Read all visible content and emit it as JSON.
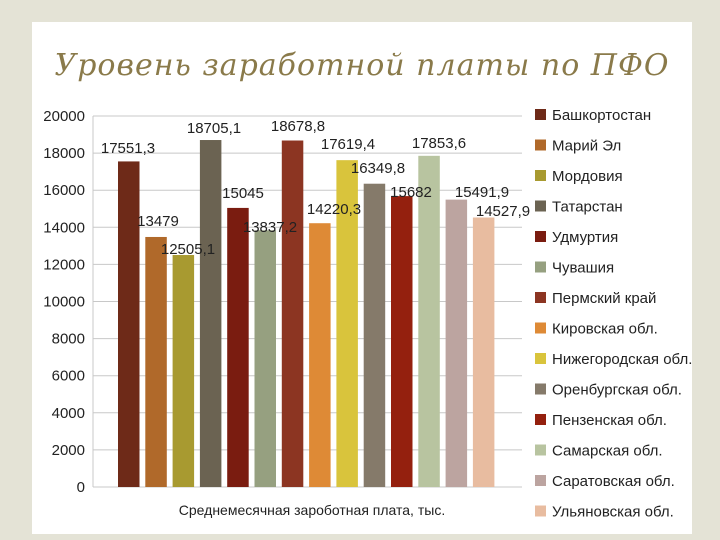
{
  "slide": {
    "title": "Уровень заработной платы по ПФО"
  },
  "chart_data": {
    "type": "bar",
    "title": "Уровень заработной платы по ПФО",
    "xlabel": "Среднемесячная зароботная плата, тыс.",
    "ylabel": "",
    "ylim": [
      0,
      20000
    ],
    "yticks": [
      "0",
      "2000",
      "4000",
      "6000",
      "8000",
      "10000",
      "12000",
      "14000",
      "16000",
      "18000",
      "20000"
    ],
    "grid": true,
    "legend_position": "right",
    "series": [
      {
        "name": "Башкортостан",
        "value": 17551.3,
        "label": "17551,3",
        "color": "#6e2a18"
      },
      {
        "name": "Марий Эл",
        "value": 13479,
        "label": "13479",
        "color": "#b0692a"
      },
      {
        "name": "Мордовия",
        "value": 12505.1,
        "label": "12505,1",
        "color": "#a89a30"
      },
      {
        "name": "Татарстан",
        "value": 18705.1,
        "label": "18705,1",
        "color": "#6b6352"
      },
      {
        "name": "Удмуртия",
        "value": 15045,
        "label": "15045",
        "color": "#7a1c10"
      },
      {
        "name": "Чувашия",
        "value": 13837.2,
        "label": "13837,2",
        "color": "#96a080"
      },
      {
        "name": "Пермский край",
        "value": 18678.8,
        "label": "18678,8",
        "color": "#8c3522"
      },
      {
        "name": "Кировская обл.",
        "value": 14220.3,
        "label": "14220,3",
        "color": "#de8a36"
      },
      {
        "name": "Нижегородская обл.",
        "value": 17619.4,
        "label": "17619,4",
        "color": "#d9c43c"
      },
      {
        "name": "Оренбургская обл.",
        "value": 16349.8,
        "label": "16349,8",
        "color": "#857a6a"
      },
      {
        "name": "Пензенская обл.",
        "value": 15682,
        "label": "15682",
        "color": "#94200e"
      },
      {
        "name": "Самарская обл.",
        "value": 17853.6,
        "label": "17853,6",
        "color": "#b8c4a0"
      },
      {
        "name": "Саратовская обл.",
        "value": 15491.9,
        "label": "15491,9",
        "color": "#bca4a0"
      },
      {
        "name": "Ульяновская обл.",
        "value": 14527.9,
        "label": "14527,9",
        "color": "#e8bca0"
      }
    ]
  }
}
